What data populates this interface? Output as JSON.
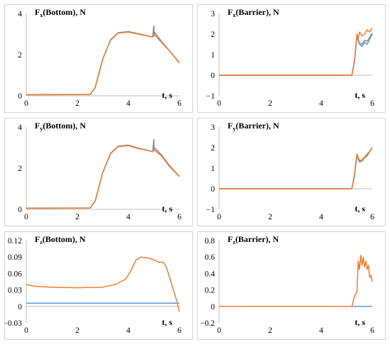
{
  "colors": {
    "orange": "#ED7D31",
    "blue": "#5B9BD5",
    "gray": "#8c8c8c",
    "axis": "#bfbfbf"
  },
  "chart_data": [
    {
      "type": "line",
      "title": {
        "main": "F",
        "sub": "x",
        "rest": "(Bottom), N"
      },
      "xlabel": "t, s",
      "xlim": [
        0,
        6
      ],
      "ylim": [
        0,
        4
      ],
      "x_ticks": [
        "0",
        "2",
        "4",
        "6"
      ],
      "y_ticks": [
        "0",
        "2",
        "4"
      ],
      "grid": false,
      "series": [
        {
          "color": "blue",
          "x": [
            0,
            2.5,
            2.7,
            3.0,
            3.3,
            3.6,
            4.0,
            4.4,
            4.8,
            4.95,
            5.0,
            5.3,
            5.6,
            6.0
          ],
          "y": [
            0.05,
            0.06,
            0.4,
            1.8,
            2.7,
            3.05,
            3.1,
            3.0,
            2.9,
            2.85,
            3.0,
            2.6,
            2.2,
            1.6
          ]
        },
        {
          "color": "gray",
          "x": [
            0,
            2.5,
            2.7,
            3.0,
            3.3,
            3.6,
            4.0,
            4.4,
            4.8,
            4.95,
            5.0,
            5.01,
            5.02,
            5.3,
            5.6,
            6.0
          ],
          "y": [
            0.06,
            0.07,
            0.4,
            1.8,
            2.72,
            3.07,
            3.12,
            3.02,
            2.9,
            2.85,
            3.4,
            2.9,
            3.1,
            2.65,
            2.2,
            1.6
          ]
        },
        {
          "color": "orange",
          "x": [
            0,
            2.5,
            2.7,
            3.0,
            3.3,
            3.6,
            4.0,
            4.4,
            4.8,
            4.95,
            5.0,
            5.3,
            5.6,
            6.0
          ],
          "y": [
            0.05,
            0.06,
            0.4,
            1.8,
            2.7,
            3.05,
            3.1,
            3.0,
            2.9,
            2.85,
            3.0,
            2.6,
            2.2,
            1.6
          ]
        }
      ]
    },
    {
      "type": "line",
      "title": {
        "main": "F",
        "sub": "x",
        "rest": "(Barrier), N"
      },
      "xlabel": "t, s",
      "xlim": [
        0,
        6
      ],
      "ylim": [
        -1,
        3
      ],
      "x_ticks": [
        "0",
        "2",
        "4",
        "6"
      ],
      "y_ticks": [
        "−1",
        "0",
        "1",
        "2",
        "3"
      ],
      "grid": false,
      "series": [
        {
          "color": "blue",
          "x": [
            0,
            5.2,
            5.3,
            5.4,
            5.5,
            5.6,
            5.7,
            5.8,
            6.0
          ],
          "y": [
            0,
            0,
            0.6,
            1.9,
            1.5,
            1.4,
            1.6,
            1.5,
            2.0
          ]
        },
        {
          "color": "gray",
          "x": [
            0,
            5.2,
            5.3,
            5.4,
            5.5,
            5.6,
            5.7,
            5.8,
            6.0
          ],
          "y": [
            0,
            0,
            0.65,
            1.95,
            1.55,
            1.5,
            1.7,
            1.65,
            2.05
          ]
        },
        {
          "color": "orange",
          "x": [
            0,
            5.2,
            5.3,
            5.4,
            5.45,
            5.5,
            5.6,
            5.7,
            5.8,
            5.9,
            6.0
          ],
          "y": [
            0,
            0,
            0.7,
            2.0,
            1.8,
            2.1,
            1.9,
            2.0,
            2.2,
            2.1,
            2.3
          ]
        }
      ]
    },
    {
      "type": "line",
      "title": {
        "main": "F",
        "sub": "y",
        "rest": "(Bottom), N"
      },
      "xlabel": "t, s",
      "xlim": [
        0,
        6
      ],
      "ylim": [
        0,
        4
      ],
      "x_ticks": [
        "0",
        "2",
        "4",
        "6"
      ],
      "y_ticks": [
        "0",
        "2",
        "4"
      ],
      "grid": false,
      "series": [
        {
          "color": "blue",
          "x": [
            0,
            2.5,
            2.7,
            3.0,
            3.3,
            3.6,
            4.0,
            4.4,
            4.8,
            4.95,
            5.0,
            5.3,
            5.6,
            6.0
          ],
          "y": [
            0.05,
            0.06,
            0.4,
            1.8,
            2.7,
            3.05,
            3.1,
            2.95,
            2.85,
            2.8,
            2.9,
            2.6,
            2.1,
            1.6
          ]
        },
        {
          "color": "gray",
          "x": [
            0,
            2.5,
            2.7,
            3.0,
            3.3,
            3.6,
            4.0,
            4.4,
            4.8,
            4.95,
            5.0,
            5.01,
            5.02,
            5.3,
            5.6,
            6.0
          ],
          "y": [
            0.06,
            0.07,
            0.4,
            1.8,
            2.72,
            3.07,
            3.12,
            2.97,
            2.86,
            2.8,
            3.4,
            2.85,
            3.0,
            2.65,
            2.15,
            1.6
          ]
        },
        {
          "color": "orange",
          "x": [
            0,
            2.5,
            2.7,
            3.0,
            3.3,
            3.6,
            4.0,
            4.4,
            4.8,
            4.95,
            5.0,
            5.3,
            5.6,
            6.0
          ],
          "y": [
            0.05,
            0.06,
            0.4,
            1.8,
            2.7,
            3.05,
            3.1,
            2.95,
            2.85,
            2.8,
            2.9,
            2.6,
            2.1,
            1.6
          ]
        }
      ]
    },
    {
      "type": "line",
      "title": {
        "main": "F",
        "sub": "y",
        "rest": "(Barrier), N"
      },
      "xlabel": "t, s",
      "xlim": [
        0,
        6
      ],
      "ylim": [
        -1,
        3
      ],
      "x_ticks": [
        "0",
        "2",
        "4",
        "6"
      ],
      "y_ticks": [
        "−1",
        "0",
        "1",
        "2",
        "3"
      ],
      "grid": false,
      "series": [
        {
          "color": "blue",
          "x": [
            0,
            5.2,
            5.3,
            5.4,
            5.5,
            5.6,
            5.7,
            5.8,
            6.0
          ],
          "y": [
            0,
            0,
            0.6,
            1.6,
            1.3,
            1.35,
            1.5,
            1.6,
            2.0
          ]
        },
        {
          "color": "gray",
          "x": [
            0,
            5.2,
            5.3,
            5.4,
            5.5,
            5.6,
            5.7,
            5.8,
            6.0
          ],
          "y": [
            0,
            0,
            0.65,
            1.65,
            1.35,
            1.4,
            1.55,
            1.65,
            2.0
          ]
        },
        {
          "color": "orange",
          "x": [
            0,
            5.2,
            5.3,
            5.4,
            5.45,
            5.5,
            5.6,
            5.7,
            5.8,
            5.9,
            6.0
          ],
          "y": [
            0,
            0,
            0.7,
            1.7,
            1.5,
            1.4,
            1.35,
            1.5,
            1.7,
            1.8,
            2.0
          ]
        }
      ]
    },
    {
      "type": "line",
      "title": {
        "main": "F",
        "sub": "z",
        "rest": "(Bottom), N"
      },
      "xlabel": "t, s",
      "xlim": [
        0,
        6
      ],
      "ylim": [
        -0.03,
        0.12
      ],
      "x_ticks": [
        "0",
        "2",
        "4",
        "6"
      ],
      "y_ticks": [
        "−0.03",
        "0",
        "0.03",
        "0.06",
        "0.09",
        "0.12"
      ],
      "grid": false,
      "series": [
        {
          "color": "blue",
          "x": [
            0,
            6
          ],
          "y": [
            0.006,
            0.006
          ]
        },
        {
          "color": "orange",
          "x": [
            0,
            0.3,
            0.6,
            1.0,
            2.0,
            3.0,
            3.5,
            3.9,
            4.1,
            4.3,
            4.5,
            4.8,
            5.1,
            5.2,
            5.3,
            5.4,
            5.5,
            5.6,
            5.7,
            5.8,
            5.9,
            6.0
          ],
          "y": [
            0.04,
            0.037,
            0.036,
            0.035,
            0.034,
            0.035,
            0.04,
            0.05,
            0.065,
            0.085,
            0.09,
            0.088,
            0.083,
            0.08,
            0.081,
            0.079,
            0.07,
            0.055,
            0.04,
            0.025,
            0.01,
            -0.01
          ]
        }
      ]
    },
    {
      "type": "line",
      "title": {
        "main": "F",
        "sub": "z",
        "rest": "(Barrier), N"
      },
      "xlabel": "t, s",
      "xlim": [
        0,
        6
      ],
      "ylim": [
        -0.2,
        0.8
      ],
      "x_ticks": [
        "0",
        "2",
        "4",
        "6"
      ],
      "y_ticks": [
        "−0.2",
        "0",
        "0.2",
        "0.4",
        "0.6",
        "0.8"
      ],
      "grid": false,
      "series": [
        {
          "color": "blue",
          "x": [
            0,
            6
          ],
          "y": [
            0,
            0
          ]
        },
        {
          "color": "orange",
          "x": [
            0,
            5.2,
            5.3,
            5.35,
            5.4,
            5.45,
            5.5,
            5.55,
            5.6,
            5.65,
            5.7,
            5.75,
            5.8,
            5.85,
            5.9,
            5.95,
            6.0
          ],
          "y": [
            0,
            0,
            0.12,
            0.15,
            0.18,
            0.55,
            0.45,
            0.62,
            0.5,
            0.6,
            0.48,
            0.55,
            0.45,
            0.5,
            0.35,
            0.38,
            0.3
          ]
        }
      ]
    }
  ]
}
